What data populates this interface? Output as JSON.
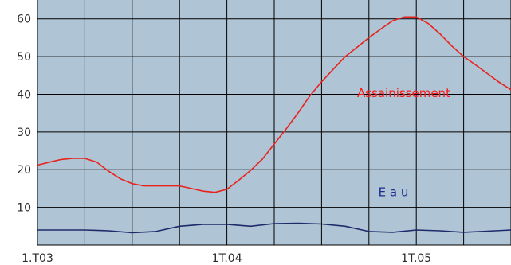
{
  "chart_data": {
    "type": "line",
    "title": "",
    "xlabel": "",
    "ylabel": "",
    "x_tick_labels": [
      "1.T03",
      "1T.04",
      "1T.05"
    ],
    "y_ticks": [
      10,
      20,
      30,
      40,
      50,
      60
    ],
    "ylim": [
      0,
      65
    ],
    "grid": true,
    "plot_background": "#afc4d4",
    "grid_color": "#000000",
    "series": [
      {
        "name": "Assainissement",
        "color": "#e8231d",
        "label_color": "#ff1a1a",
        "x": [
          0,
          0.25,
          0.5,
          0.75,
          1,
          1.25,
          1.5,
          1.75,
          2,
          2.25,
          2.5,
          2.75,
          3,
          3.25,
          3.5,
          3.75,
          4,
          4.25,
          4.5,
          4.75,
          5,
          5.25,
          5.5,
          5.75,
          6,
          6.25,
          6.5,
          6.75,
          7,
          7.25,
          7.5,
          7.75,
          8,
          8.25,
          8.5,
          8.75,
          9,
          9.25,
          9.5,
          9.75,
          10
        ],
        "y": [
          21.2,
          22,
          22.7,
          23,
          23,
          22,
          19.6,
          17.6,
          16.3,
          15.7,
          15.7,
          15.7,
          15.7,
          15,
          14.3,
          14,
          14.8,
          17.2,
          19.8,
          22.8,
          26.8,
          30.8,
          35,
          39.5,
          43.3,
          46.7,
          50,
          52.5,
          55,
          57.3,
          59.5,
          60.5,
          60.5,
          58.8,
          56,
          52.8,
          50,
          47.8,
          45.5,
          43.2,
          41.2
        ]
      },
      {
        "name": "Eau",
        "color": "#1f2a6b",
        "label_color": "#1c2b8f",
        "x": [
          0,
          0.5,
          1,
          1.5,
          2,
          2.5,
          3,
          3.5,
          4,
          4.5,
          5,
          5.5,
          6,
          6.5,
          7,
          7.5,
          8,
          8.5,
          9,
          9.5,
          10
        ],
        "y": [
          4,
          4,
          4,
          3.8,
          3.3,
          3.6,
          5,
          5.5,
          5.5,
          5,
          5.7,
          5.8,
          5.6,
          5,
          3.6,
          3.4,
          4,
          3.8,
          3.4,
          3.7,
          4
        ]
      }
    ],
    "series_labels": [
      "Assainissement",
      "E a u"
    ]
  }
}
